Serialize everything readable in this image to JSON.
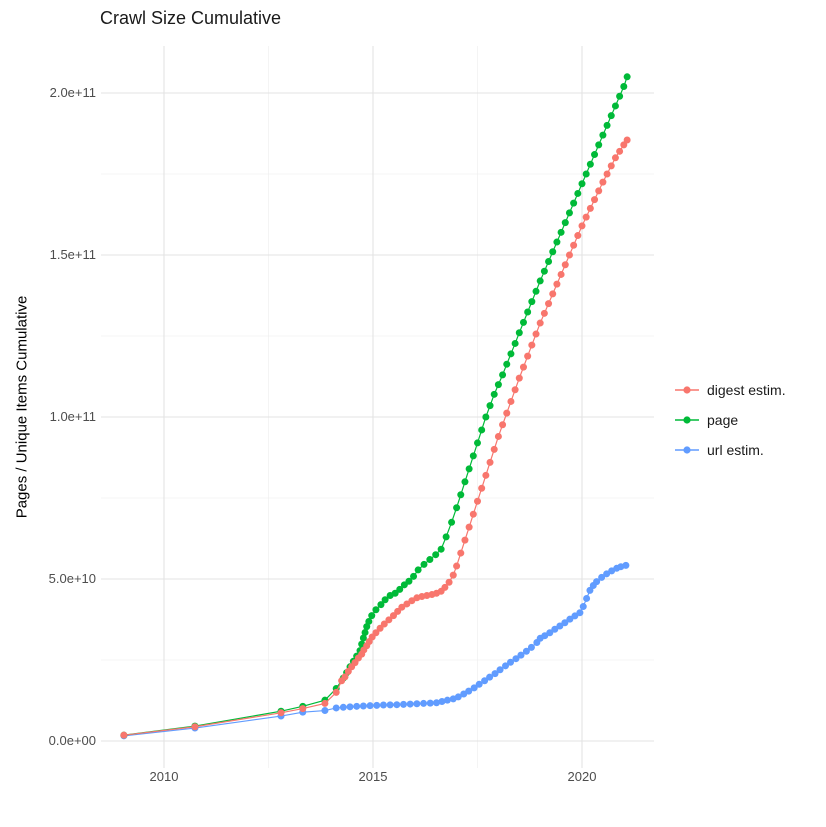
{
  "title": "Crawl Size Cumulative",
  "legend": {
    "items": [
      {
        "label": "digest estim.",
        "color": "#F8766D"
      },
      {
        "label": "page",
        "color": "#00BA38"
      },
      {
        "label": "url estim.",
        "color": "#619CFF"
      }
    ]
  },
  "colors": {
    "background": "#ffffff",
    "grid_major": "#e3e3e3",
    "grid_minor": "#f1f1f1",
    "tick_text": "#4d4d4d",
    "title_text": "#1a1a1a"
  },
  "chart_data": {
    "type": "line",
    "title": "Crawl Size Cumulative",
    "xlabel": "",
    "ylabel": "Pages / Unique Items Cumulative",
    "value_unit": "1e9",
    "xlim": [
      2008.5,
      2021.7
    ],
    "ylim": [
      -10,
      215
    ],
    "grid": true,
    "legend_position": "right",
    "x_ticks": [
      {
        "value": 2010,
        "label": "2010"
      },
      {
        "value": 2015,
        "label": "2015"
      },
      {
        "value": 2020,
        "label": "2020"
      }
    ],
    "x_minor_ticks": [
      2012.5,
      2017.5
    ],
    "y_ticks": [
      {
        "value": 0,
        "label": "0.0e+00"
      },
      {
        "value": 50,
        "label": "5.0e+10"
      },
      {
        "value": 100,
        "label": "1.0e+11"
      },
      {
        "value": 150,
        "label": "1.5e+11"
      },
      {
        "value": 200,
        "label": "2.0e+11"
      }
    ],
    "y_minor_ticks": [
      25,
      75,
      125,
      175
    ],
    "series": [
      {
        "name": "digest estim.",
        "color": "#F8766D",
        "points": [
          [
            2009.04,
            1.8
          ],
          [
            2010.74,
            4.4
          ],
          [
            2012.8,
            8.7
          ],
          [
            2013.32,
            10.0
          ],
          [
            2013.85,
            11.6
          ],
          [
            2014.12,
            15.0
          ],
          [
            2014.25,
            18.6
          ],
          [
            2014.33,
            19.8
          ],
          [
            2014.41,
            21.5
          ],
          [
            2014.49,
            22.9
          ],
          [
            2014.57,
            24.2
          ],
          [
            2014.65,
            25.6
          ],
          [
            2014.73,
            26.8
          ],
          [
            2014.78,
            28.1
          ],
          [
            2014.85,
            29.4
          ],
          [
            2014.91,
            30.7
          ],
          [
            2014.98,
            32.1
          ],
          [
            2015.07,
            33.4
          ],
          [
            2015.17,
            34.8
          ],
          [
            2015.27,
            36.1
          ],
          [
            2015.38,
            37.4
          ],
          [
            2015.49,
            38.7
          ],
          [
            2015.59,
            40.0
          ],
          [
            2015.69,
            41.3
          ],
          [
            2015.81,
            42.3
          ],
          [
            2015.93,
            43.3
          ],
          [
            2016.05,
            44.2
          ],
          [
            2016.17,
            44.6
          ],
          [
            2016.29,
            44.9
          ],
          [
            2016.41,
            45.2
          ],
          [
            2016.52,
            45.6
          ],
          [
            2016.63,
            46.2
          ],
          [
            2016.72,
            47.4
          ],
          [
            2016.82,
            49.0
          ],
          [
            2016.92,
            51.2
          ],
          [
            2017.0,
            54.0
          ],
          [
            2017.1,
            58.0
          ],
          [
            2017.2,
            62.0
          ],
          [
            2017.3,
            66.0
          ],
          [
            2017.4,
            70.0
          ],
          [
            2017.5,
            74.0
          ],
          [
            2017.6,
            78.0
          ],
          [
            2017.7,
            82.0
          ],
          [
            2017.8,
            86.0
          ],
          [
            2017.9,
            90.0
          ],
          [
            2018.0,
            94.0
          ],
          [
            2018.1,
            97.6
          ],
          [
            2018.2,
            101.2
          ],
          [
            2018.3,
            104.8
          ],
          [
            2018.4,
            108.4
          ],
          [
            2018.5,
            112.0
          ],
          [
            2018.6,
            115.4
          ],
          [
            2018.7,
            118.8
          ],
          [
            2018.8,
            122.2
          ],
          [
            2018.9,
            125.6
          ],
          [
            2019.0,
            129.0
          ],
          [
            2019.1,
            132.0
          ],
          [
            2019.2,
            135.0
          ],
          [
            2019.3,
            138.0
          ],
          [
            2019.4,
            141.0
          ],
          [
            2019.5,
            144.0
          ],
          [
            2019.6,
            147.0
          ],
          [
            2019.7,
            150.0
          ],
          [
            2019.8,
            153.0
          ],
          [
            2019.9,
            156.0
          ],
          [
            2020.0,
            159.0
          ],
          [
            2020.1,
            161.7
          ],
          [
            2020.2,
            164.4
          ],
          [
            2020.3,
            167.1
          ],
          [
            2020.4,
            169.8
          ],
          [
            2020.5,
            172.5
          ],
          [
            2020.6,
            175.0
          ],
          [
            2020.7,
            177.5
          ],
          [
            2020.8,
            180.0
          ],
          [
            2020.9,
            182.0
          ],
          [
            2021.0,
            184.0
          ],
          [
            2021.08,
            185.5
          ]
        ]
      },
      {
        "name": "page",
        "color": "#00BA38",
        "points": [
          [
            2009.04,
            1.8
          ],
          [
            2010.74,
            4.6
          ],
          [
            2012.8,
            9.2
          ],
          [
            2013.32,
            10.7
          ],
          [
            2013.85,
            12.6
          ],
          [
            2014.12,
            16.2
          ],
          [
            2014.29,
            19.4
          ],
          [
            2014.37,
            21.1
          ],
          [
            2014.45,
            22.9
          ],
          [
            2014.53,
            24.6
          ],
          [
            2014.61,
            26.2
          ],
          [
            2014.69,
            27.9
          ],
          [
            2014.73,
            29.9
          ],
          [
            2014.77,
            31.8
          ],
          [
            2014.81,
            33.5
          ],
          [
            2014.85,
            35.3
          ],
          [
            2014.9,
            36.9
          ],
          [
            2014.97,
            38.7
          ],
          [
            2015.07,
            40.5
          ],
          [
            2015.19,
            42.1
          ],
          [
            2015.29,
            43.6
          ],
          [
            2015.41,
            44.9
          ],
          [
            2015.53,
            45.6
          ],
          [
            2015.64,
            46.8
          ],
          [
            2015.75,
            48.2
          ],
          [
            2015.86,
            49.3
          ],
          [
            2015.97,
            50.8
          ],
          [
            2016.08,
            52.8
          ],
          [
            2016.22,
            54.5
          ],
          [
            2016.36,
            56.0
          ],
          [
            2016.5,
            57.5
          ],
          [
            2016.63,
            59.2
          ],
          [
            2016.75,
            63.0
          ],
          [
            2016.88,
            67.5
          ],
          [
            2017.0,
            72.0
          ],
          [
            2017.1,
            76.0
          ],
          [
            2017.2,
            80.0
          ],
          [
            2017.3,
            84.0
          ],
          [
            2017.4,
            88.0
          ],
          [
            2017.5,
            92.0
          ],
          [
            2017.6,
            96.0
          ],
          [
            2017.7,
            100.0
          ],
          [
            2017.8,
            103.5
          ],
          [
            2017.9,
            107.0
          ],
          [
            2018.0,
            110.0
          ],
          [
            2018.1,
            113.0
          ],
          [
            2018.2,
            116.3
          ],
          [
            2018.3,
            119.5
          ],
          [
            2018.4,
            122.7
          ],
          [
            2018.5,
            126.0
          ],
          [
            2018.6,
            129.2
          ],
          [
            2018.7,
            132.4
          ],
          [
            2018.8,
            135.6
          ],
          [
            2018.9,
            138.8
          ],
          [
            2019.0,
            142.0
          ],
          [
            2019.1,
            145.0
          ],
          [
            2019.2,
            148.0
          ],
          [
            2019.3,
            151.0
          ],
          [
            2019.4,
            154.0
          ],
          [
            2019.5,
            157.0
          ],
          [
            2019.6,
            160.0
          ],
          [
            2019.7,
            163.0
          ],
          [
            2019.8,
            166.0
          ],
          [
            2019.9,
            169.0
          ],
          [
            2020.0,
            172.0
          ],
          [
            2020.1,
            175.0
          ],
          [
            2020.2,
            178.0
          ],
          [
            2020.3,
            181.0
          ],
          [
            2020.4,
            184.0
          ],
          [
            2020.5,
            187.0
          ],
          [
            2020.6,
            190.0
          ],
          [
            2020.7,
            193.0
          ],
          [
            2020.8,
            196.0
          ],
          [
            2020.9,
            199.0
          ],
          [
            2021.0,
            202.0
          ],
          [
            2021.08,
            205.0
          ]
        ]
      },
      {
        "name": "url estim.",
        "color": "#619CFF",
        "points": [
          [
            2009.04,
            1.6
          ],
          [
            2010.74,
            4.0
          ],
          [
            2012.8,
            7.7
          ],
          [
            2013.32,
            8.9
          ],
          [
            2013.85,
            9.4
          ],
          [
            2014.12,
            10.2
          ],
          [
            2014.29,
            10.4
          ],
          [
            2014.45,
            10.55
          ],
          [
            2014.61,
            10.7
          ],
          [
            2014.77,
            10.8
          ],
          [
            2014.93,
            10.9
          ],
          [
            2015.09,
            11.0
          ],
          [
            2015.25,
            11.1
          ],
          [
            2015.41,
            11.15
          ],
          [
            2015.57,
            11.2
          ],
          [
            2015.73,
            11.3
          ],
          [
            2015.89,
            11.4
          ],
          [
            2016.05,
            11.5
          ],
          [
            2016.21,
            11.6
          ],
          [
            2016.37,
            11.7
          ],
          [
            2016.52,
            11.8
          ],
          [
            2016.65,
            12.2
          ],
          [
            2016.78,
            12.6
          ],
          [
            2016.92,
            13.0
          ],
          [
            2017.04,
            13.6
          ],
          [
            2017.17,
            14.5
          ],
          [
            2017.29,
            15.4
          ],
          [
            2017.42,
            16.4
          ],
          [
            2017.54,
            17.5
          ],
          [
            2017.67,
            18.6
          ],
          [
            2017.79,
            19.7
          ],
          [
            2017.92,
            20.8
          ],
          [
            2018.04,
            22.0
          ],
          [
            2018.17,
            23.2
          ],
          [
            2018.29,
            24.3
          ],
          [
            2018.42,
            25.4
          ],
          [
            2018.54,
            26.5
          ],
          [
            2018.67,
            27.7
          ],
          [
            2018.79,
            28.9
          ],
          [
            2018.92,
            30.4
          ],
          [
            2019.0,
            31.7
          ],
          [
            2019.11,
            32.5
          ],
          [
            2019.23,
            33.4
          ],
          [
            2019.35,
            34.5
          ],
          [
            2019.47,
            35.5
          ],
          [
            2019.59,
            36.5
          ],
          [
            2019.71,
            37.6
          ],
          [
            2019.83,
            38.6
          ],
          [
            2019.95,
            39.6
          ],
          [
            2020.03,
            41.5
          ],
          [
            2020.11,
            44.0
          ],
          [
            2020.19,
            46.5
          ],
          [
            2020.27,
            48.0
          ],
          [
            2020.35,
            49.2
          ],
          [
            2020.47,
            50.5
          ],
          [
            2020.59,
            51.6
          ],
          [
            2020.71,
            52.5
          ],
          [
            2020.83,
            53.3
          ],
          [
            2020.93,
            53.8
          ],
          [
            2021.05,
            54.2
          ]
        ]
      }
    ]
  }
}
